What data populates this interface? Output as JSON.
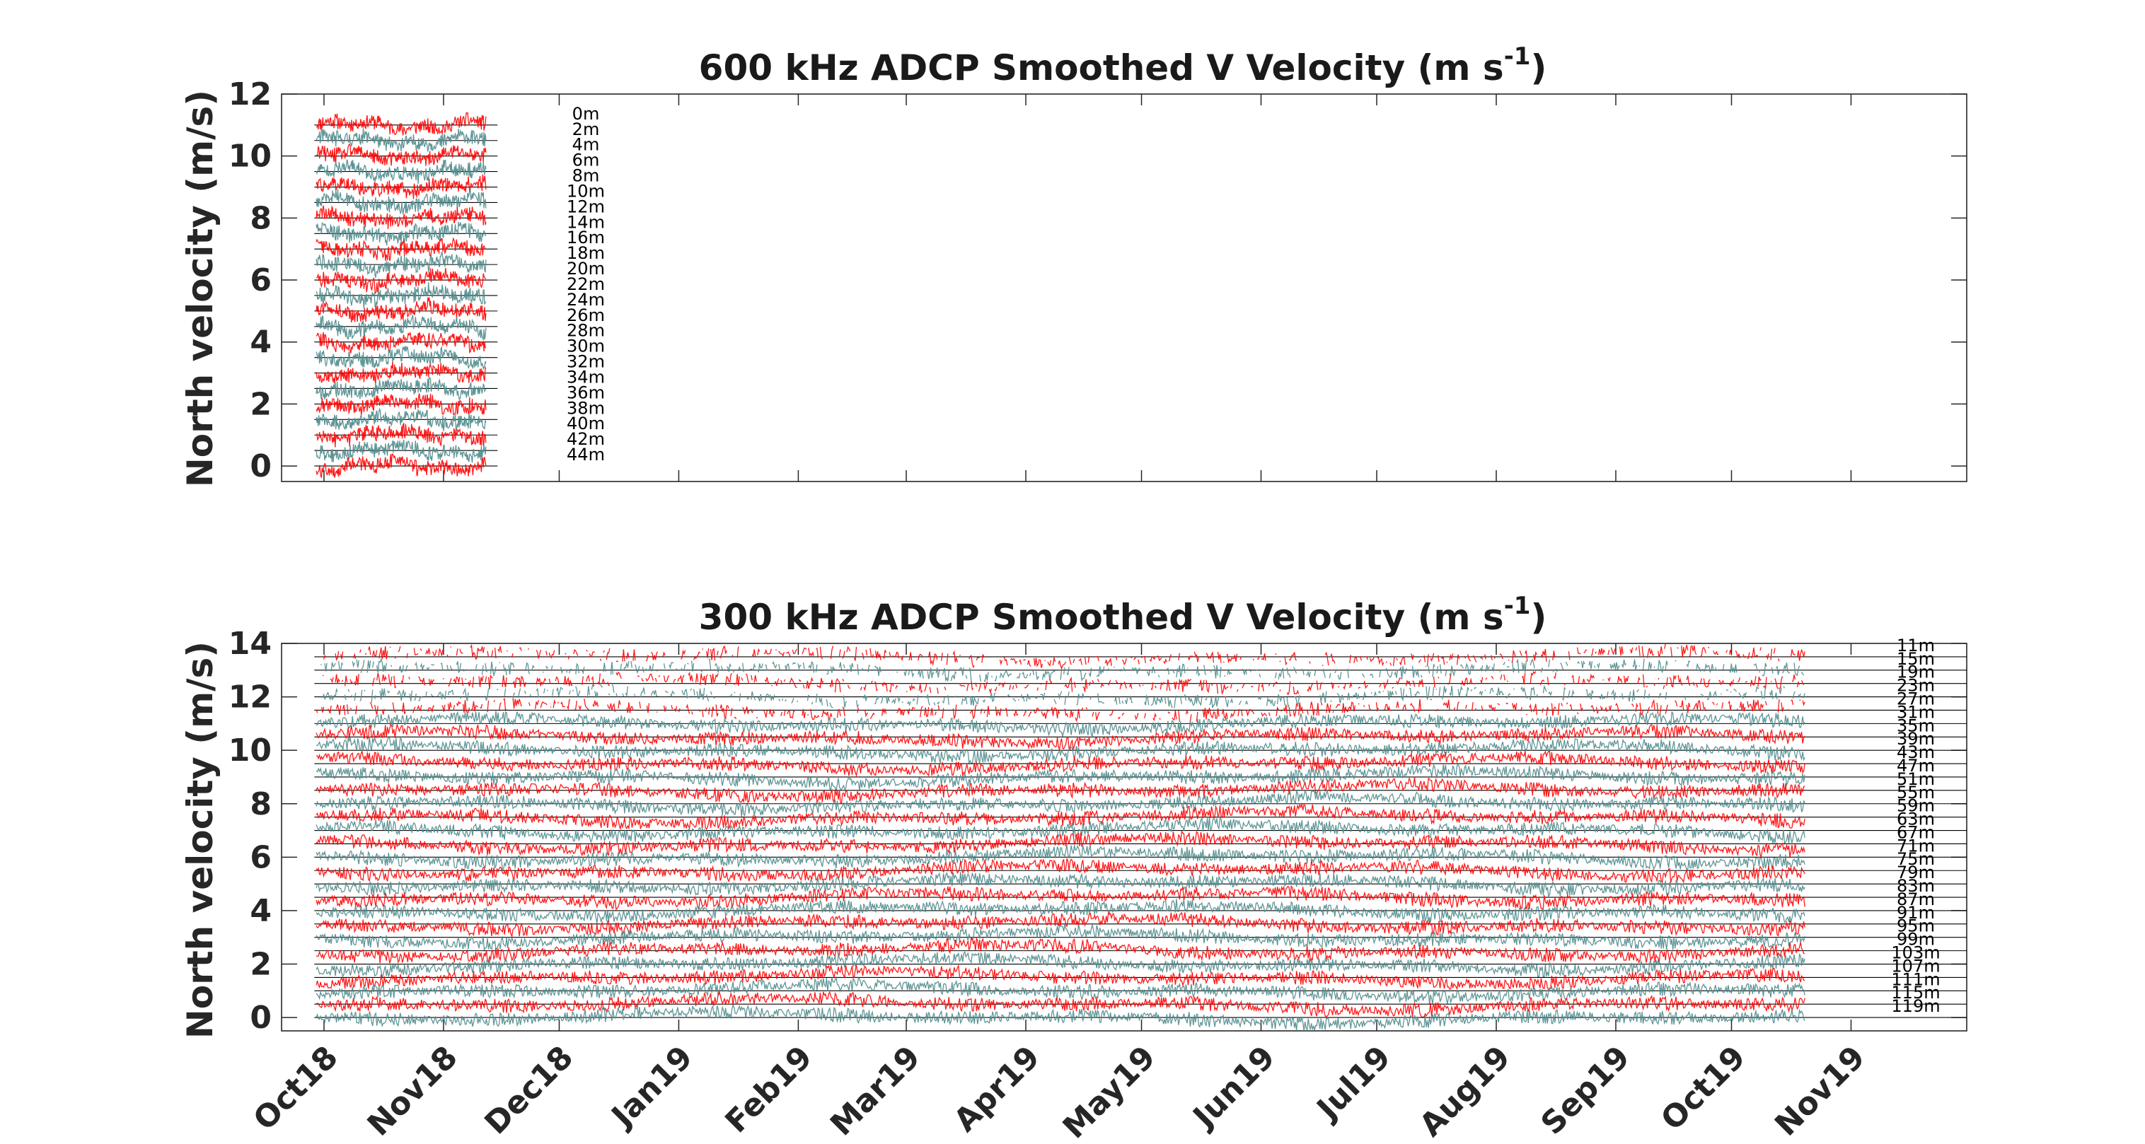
{
  "chart_data": [
    {
      "type": "line",
      "title": "600 kHz ADCP Smoothed V Velocity  (m s",
      "title_superscript": "-1",
      "title_close": ")",
      "ylabel": "North velocity (m/s)",
      "ylim": [
        -0.5,
        12
      ],
      "yticks": [
        "0",
        "2",
        "4",
        "6",
        "8",
        "10",
        "12"
      ],
      "x_range": [
        "2018-09-20",
        "2019-12-01"
      ],
      "data_x_range": [
        "2018-09-29",
        "2018-11-12"
      ],
      "depth_labels": [
        "0m",
        "2m",
        "4m",
        "6m",
        "8m",
        "10m",
        "12m",
        "14m",
        "16m",
        "18m",
        "20m",
        "22m",
        "24m",
        "26m",
        "28m",
        "30m",
        "32m",
        "34m",
        "36m",
        "38m",
        "40m",
        "42m",
        "44m"
      ],
      "series_colors": [
        "#ff0000",
        "#4f8a8b"
      ],
      "baseline_color": "#000000",
      "grid": false
    },
    {
      "type": "line",
      "title": "300 kHz ADCP Smoothed V Velocity  (m s",
      "title_superscript": "-1",
      "title_close": ")",
      "ylabel": "North velocity (m/s)",
      "ylim": [
        -0.5,
        14
      ],
      "yticks": [
        "0",
        "2",
        "4",
        "6",
        "8",
        "10",
        "12",
        "14"
      ],
      "x_range": [
        "2018-09-20",
        "2019-12-01"
      ],
      "data_x_range": [
        "2018-09-29",
        "2019-10-20"
      ],
      "depth_labels": [
        "11m",
        "15m",
        "19m",
        "23m",
        "27m",
        "31m",
        "35m",
        "39m",
        "43m",
        "47m",
        "51m",
        "55m",
        "59m",
        "63m",
        "67m",
        "71m",
        "75m",
        "79m",
        "83m",
        "87m",
        "91m",
        "95m",
        "99m",
        "103m",
        "107m",
        "111m",
        "115m",
        "119m"
      ],
      "series_colors": [
        "#ff0000",
        "#4f8a8b"
      ],
      "baseline_color": "#000000",
      "grid": false
    }
  ],
  "xticks": [
    "Oct18",
    "Nov18",
    "Dec18",
    "Jan19",
    "Feb19",
    "Mar19",
    "Apr19",
    "May19",
    "Jun19",
    "Jul19",
    "Aug19",
    "Sep19",
    "Oct19",
    "Nov19"
  ],
  "xtick_dates": [
    "2018-10-01",
    "2018-11-01",
    "2018-12-01",
    "2019-01-01",
    "2019-02-01",
    "2019-03-01",
    "2019-04-01",
    "2019-05-01",
    "2019-06-01",
    "2019-07-01",
    "2019-08-01",
    "2019-09-01",
    "2019-10-01",
    "2019-11-01"
  ]
}
